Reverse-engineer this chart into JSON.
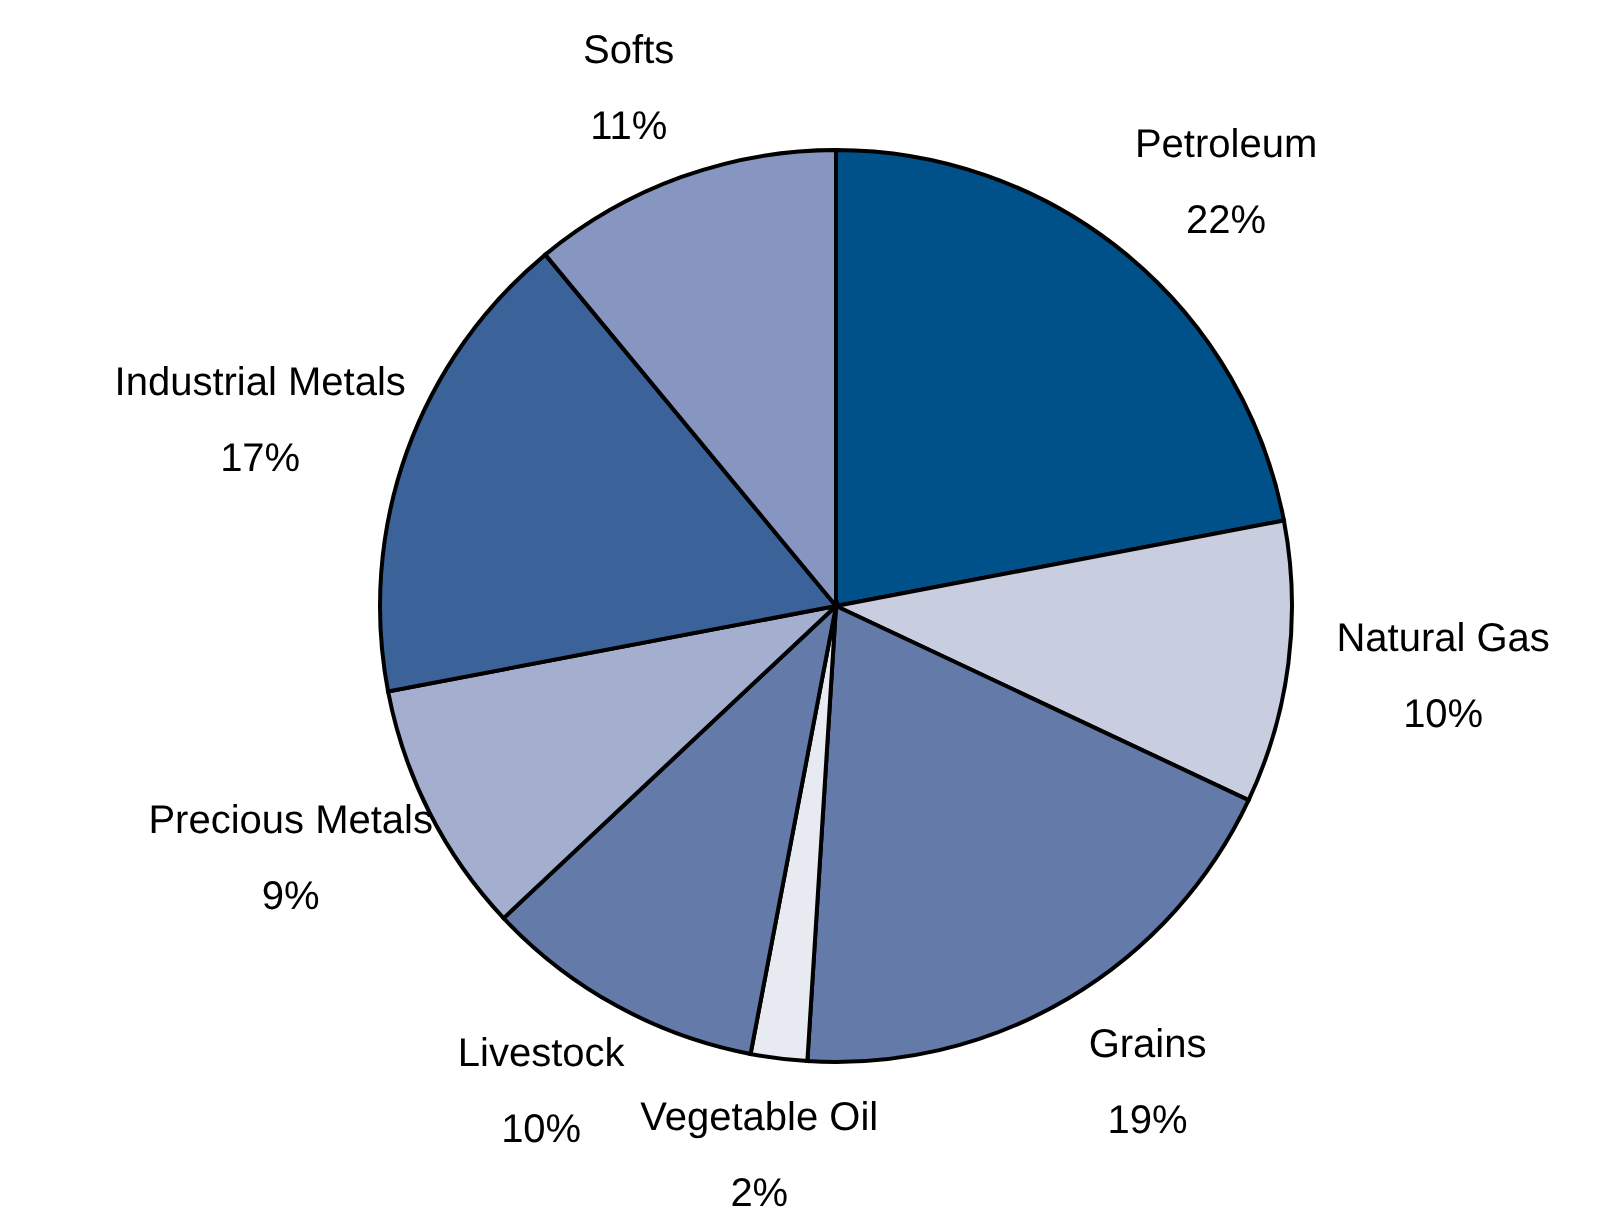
{
  "chart_data": {
    "type": "pie",
    "categories": [
      "Petroleum",
      "Natural Gas",
      "Grains",
      "Vegetable Oil",
      "Livestock",
      "Precious Metals",
      "Industrial Metals",
      "Softs"
    ],
    "values": [
      22,
      10,
      19,
      2,
      10,
      9,
      17,
      11
    ],
    "value_labels": [
      "22%",
      "10%",
      "19%",
      "2%",
      "10%",
      "9%",
      "17%",
      "11%"
    ],
    "colors": [
      "#00508a",
      "#c8cde0",
      "#647aa8",
      "#e8eaf2",
      "#647aa8",
      "#a4afd0",
      "#3c6399",
      "#8696c0"
    ],
    "legend": false
  }
}
